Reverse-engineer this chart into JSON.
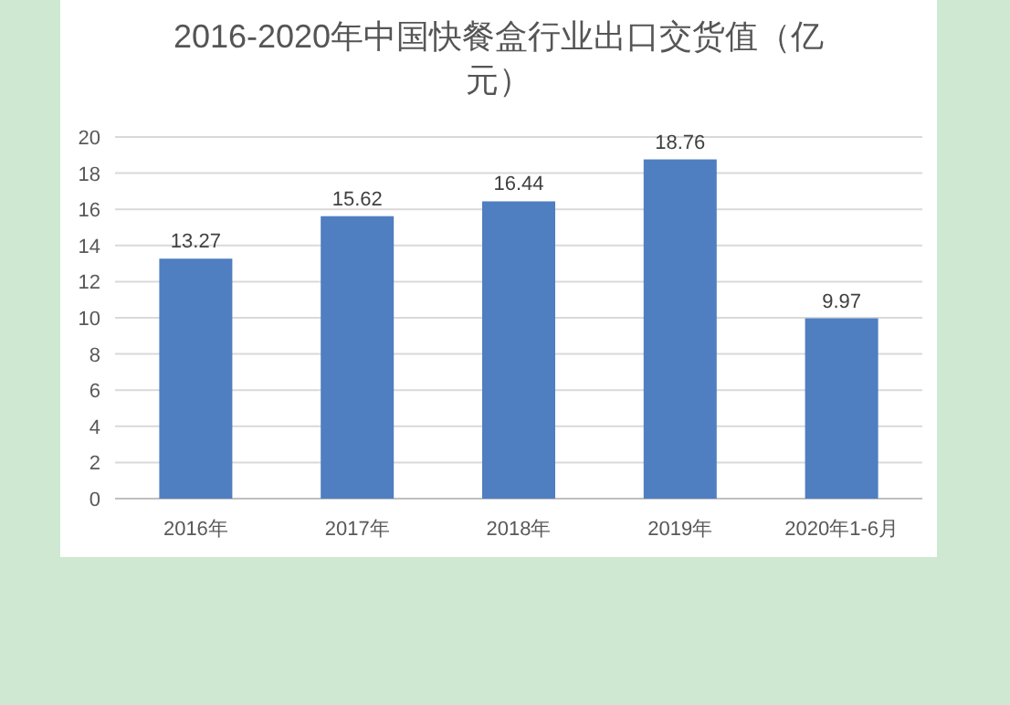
{
  "chart_data": {
    "type": "bar",
    "title": "2016-2020年中国快餐盒行业出口交货值（亿元）",
    "categories": [
      "2016年",
      "2017年",
      "2018年",
      "2019年",
      "2020年1-6月"
    ],
    "values": [
      13.27,
      15.62,
      16.44,
      18.76,
      9.97
    ],
    "color": "#4f7ec1",
    "ylim": [
      0,
      20
    ],
    "yticks": [
      0,
      2,
      4,
      6,
      8,
      10,
      12,
      14,
      16,
      18,
      20
    ],
    "grid": "y",
    "data_labels": true
  }
}
